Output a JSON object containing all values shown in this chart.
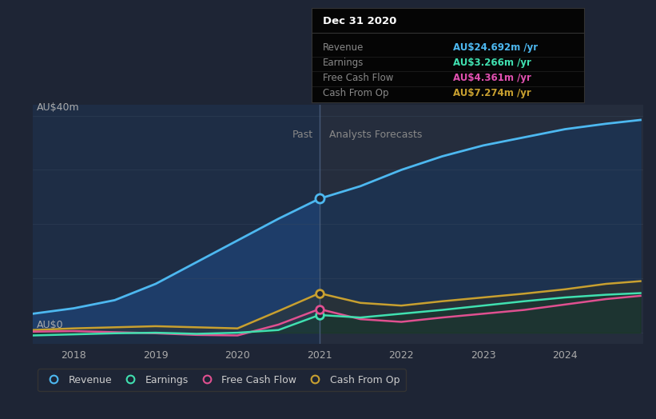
{
  "bg_color": "#1e2535",
  "plot_bg_past": "#1e2d45",
  "plot_bg_future": "#252d3d",
  "ylabel_text": "AU$40m",
  "ylabel0_text": "AU$0",
  "xlabel_ticks": [
    "2018",
    "2019",
    "2020",
    "2021",
    "2022",
    "2023",
    "2024"
  ],
  "past_label": "Past",
  "forecast_label": "Analysts Forecasts",
  "legend_entries": [
    "Revenue",
    "Earnings",
    "Free Cash Flow",
    "Cash From Op"
  ],
  "colors": {
    "revenue": "#4db8f0",
    "earnings": "#40e0b0",
    "free_cash_flow": "#e05090",
    "cash_from_op": "#c8a030"
  },
  "tooltip": {
    "title": "Dec 31 2020",
    "rows": [
      {
        "label": "Revenue",
        "value": "AU$24.692m /yr",
        "color": "#4db8f0"
      },
      {
        "label": "Earnings",
        "value": "AU$3.266m /yr",
        "color": "#40e0b0"
      },
      {
        "label": "Free Cash Flow",
        "value": "AU$4.361m /yr",
        "color": "#e050b0"
      },
      {
        "label": "Cash From Op",
        "value": "AU$7.274m /yr",
        "color": "#c8a030"
      }
    ]
  },
  "x_past": [
    2017.5,
    2018.0,
    2018.5,
    2019.0,
    2019.5,
    2020.0,
    2020.5,
    2021.0
  ],
  "x_future": [
    2021.0,
    2021.5,
    2022.0,
    2022.5,
    2023.0,
    2023.5,
    2024.0,
    2024.5,
    2024.92
  ],
  "revenue_past": [
    3.5,
    4.5,
    6.0,
    9.0,
    13.0,
    17.0,
    21.0,
    24.692
  ],
  "revenue_future": [
    24.692,
    27.0,
    30.0,
    32.5,
    34.5,
    36.0,
    37.5,
    38.5,
    39.2
  ],
  "earnings_past": [
    -0.5,
    -0.3,
    -0.1,
    0.0,
    -0.2,
    0.0,
    0.5,
    3.266
  ],
  "earnings_future": [
    3.266,
    2.8,
    3.5,
    4.2,
    5.0,
    5.8,
    6.5,
    7.0,
    7.3
  ],
  "fcf_past": [
    0.2,
    0.3,
    0.1,
    -0.1,
    -0.4,
    -0.5,
    1.5,
    4.361
  ],
  "fcf_future": [
    4.361,
    2.5,
    2.0,
    2.8,
    3.5,
    4.2,
    5.2,
    6.2,
    6.8
  ],
  "cashop_past": [
    0.5,
    0.8,
    1.0,
    1.2,
    1.0,
    0.8,
    4.0,
    7.274
  ],
  "cashop_future": [
    7.274,
    5.5,
    5.0,
    5.8,
    6.5,
    7.2,
    8.0,
    9.0,
    9.5
  ],
  "split_x": 2021.0,
  "ylim": [
    -2,
    42
  ],
  "xlim": [
    2017.5,
    2024.95
  ]
}
